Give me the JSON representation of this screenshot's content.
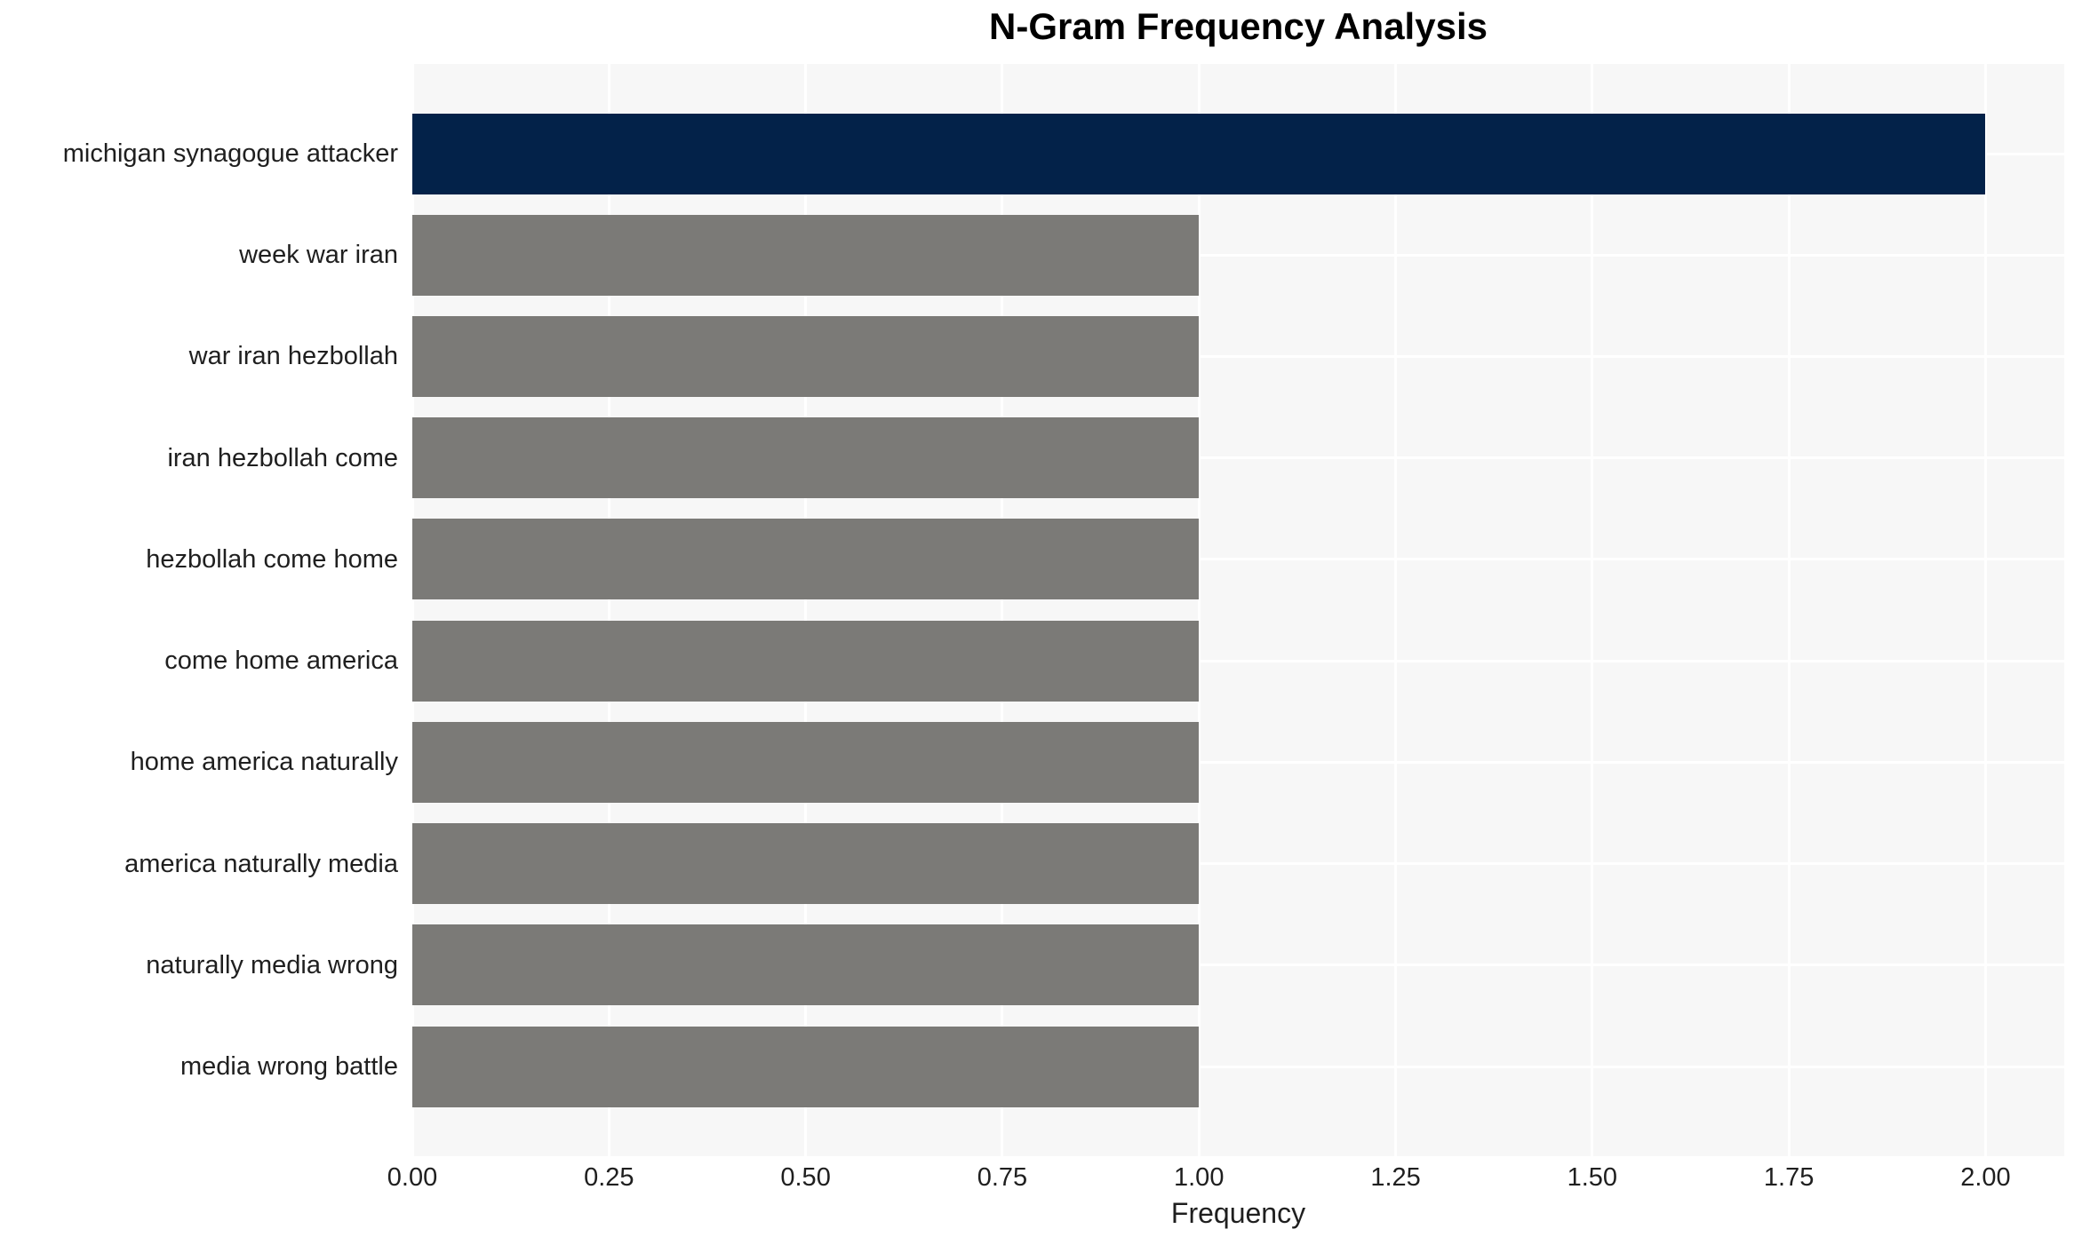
{
  "chart_data": {
    "type": "bar",
    "orientation": "horizontal",
    "title": "N-Gram Frequency Analysis",
    "xlabel": "Frequency",
    "ylabel": "",
    "categories": [
      "michigan synagogue attacker",
      "week war iran",
      "war iran hezbollah",
      "iran hezbollah come",
      "hezbollah come home",
      "come home america",
      "home america naturally",
      "america naturally media",
      "naturally media wrong",
      "media wrong battle"
    ],
    "values": [
      2,
      1,
      1,
      1,
      1,
      1,
      1,
      1,
      1,
      1
    ],
    "bar_colors": [
      "#032249",
      "#7b7a77",
      "#7b7a77",
      "#7b7a77",
      "#7b7a77",
      "#7b7a77",
      "#7b7a77",
      "#7b7a77",
      "#7b7a77",
      "#7b7a77"
    ],
    "xlim": [
      0,
      2.1
    ],
    "xtick_labels": [
      "0.00",
      "0.25",
      "0.50",
      "0.75",
      "1.00",
      "1.25",
      "1.50",
      "1.75",
      "2.00"
    ],
    "grid": true,
    "legend": "none",
    "colors": {
      "highlight_bar": "#032249",
      "default_bar": "#7b7a77",
      "plot_background": "#f7f7f7",
      "gridline": "#ffffff",
      "text": "#1f1f1f",
      "title_text": "#000000",
      "page_background": "#ffffff"
    }
  }
}
